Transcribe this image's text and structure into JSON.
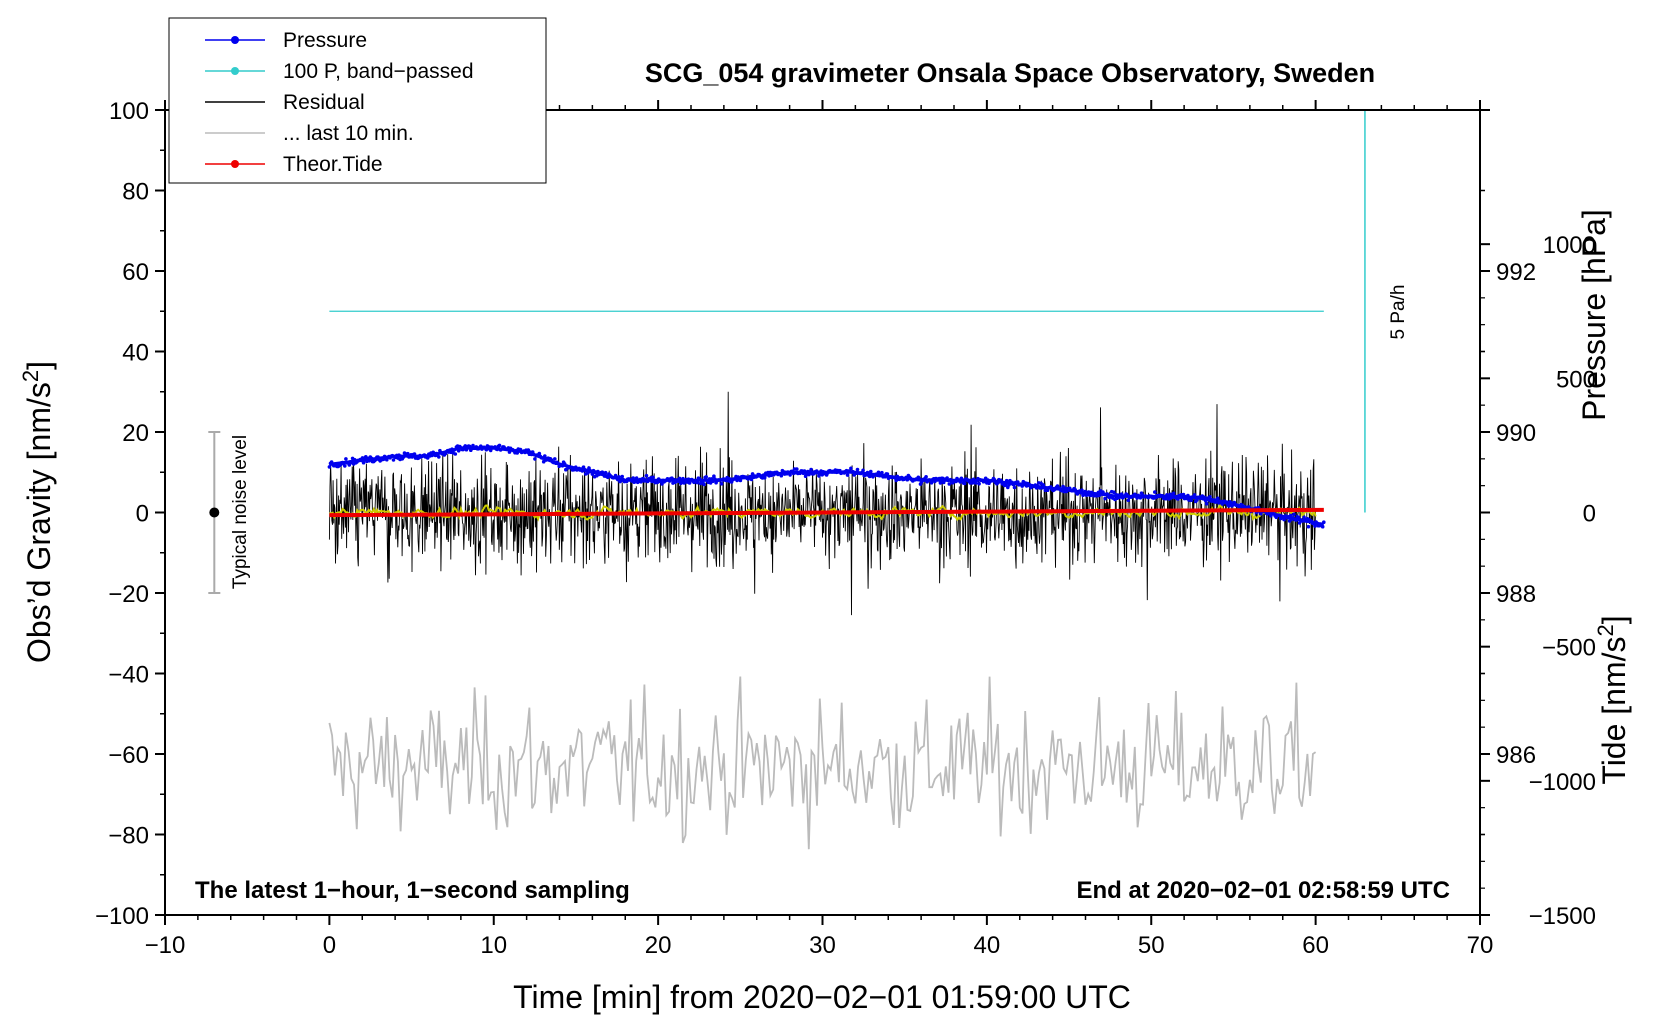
{
  "chart_data": {
    "type": "line",
    "title": "SCG_054 gravimeter Onsala Space Observatory, Sweden",
    "xlabel": "Time [min] from 2020−02−01 01:59:00 UTC",
    "ylabel_left": "Obs’d Gravity [nm/s",
    "ylabel_left_sup": "2",
    "ylabel_left_end": "]",
    "ylabel_right_pressure": "Pressure [hPa]",
    "ylabel_right_tide": "Tide [nm/s",
    "ylabel_right_tide_sup": "2",
    "ylabel_right_tide_end": "]",
    "xlim": [
      -10,
      70
    ],
    "ylim_left": [
      -100,
      100
    ],
    "pressure_lim": [
      984,
      994
    ],
    "tide_lim": [
      -1500,
      1500
    ],
    "x_ticks": [
      "−10",
      "0",
      "10",
      "20",
      "30",
      "40",
      "50",
      "60",
      "70"
    ],
    "x_tick_values": [
      -10,
      0,
      10,
      20,
      30,
      40,
      50,
      60,
      70
    ],
    "y_left_ticks": [
      "100",
      "80",
      "60",
      "40",
      "20",
      "0",
      "−20",
      "−40",
      "−60",
      "−80",
      "−100"
    ],
    "y_left_tick_values": [
      100,
      80,
      60,
      40,
      20,
      0,
      -20,
      -40,
      -60,
      -80,
      -100
    ],
    "pressure_ticks": [
      "992",
      "990",
      "988",
      "986"
    ],
    "pressure_tick_values": [
      992,
      990,
      988,
      986
    ],
    "tide_ticks": [
      "1000",
      "500",
      "0",
      "−500",
      "−1000",
      "−1500"
    ],
    "tide_tick_values": [
      1000,
      500,
      0,
      -500,
      -1000,
      -1500
    ],
    "legend": [
      {
        "label": "Pressure",
        "color": "#0000ee",
        "marker": true
      },
      {
        "label": "100 P, band−passed",
        "color": "#33cccc",
        "marker": true
      },
      {
        "label": "Residual",
        "color": "#000000",
        "marker": false
      },
      {
        "label": "... last 10 min.",
        "color": "#bbbbbb",
        "marker": false
      },
      {
        "label": "Theor.Tide",
        "color": "#ee0000",
        "marker": true
      }
    ],
    "series": [
      {
        "name": "Pressure",
        "axis": "pressure",
        "color": "#0000ee",
        "x": [
          0,
          2,
          4,
          6,
          8,
          10,
          12,
          14,
          16,
          18,
          20,
          22,
          24,
          26,
          28,
          30,
          32,
          34,
          36,
          38,
          40,
          42,
          44,
          46,
          48,
          50,
          52,
          54,
          56,
          58,
          60.5
        ],
        "y": [
          989.6,
          989.65,
          989.7,
          989.7,
          989.8,
          989.8,
          989.75,
          989.6,
          989.5,
          989.4,
          989.4,
          989.4,
          989.4,
          989.45,
          989.5,
          989.5,
          989.5,
          989.45,
          989.4,
          989.4,
          989.4,
          989.35,
          989.3,
          989.25,
          989.2,
          989.2,
          989.2,
          989.15,
          989.05,
          988.95,
          988.85
        ]
      },
      {
        "name": "100 P, band−passed",
        "axis": "left",
        "color": "#33cccc",
        "x": [
          0,
          60.5
        ],
        "y": [
          50,
          50
        ]
      },
      {
        "name": "Residual",
        "axis": "left",
        "color": "#000000",
        "x_range": [
          0,
          60
        ],
        "amplitude": 9,
        "max_abs": 30
      },
      {
        "name": "Residual (smoothed)",
        "axis": "left",
        "color": "#cccc00",
        "x_range": [
          0,
          60
        ],
        "amplitude": 1.2
      },
      {
        "name": "... last 10 min.",
        "axis": "left",
        "color": "#bbbbbb",
        "x_range": [
          0,
          60
        ],
        "center": -63,
        "amplitude": 12
      },
      {
        "name": "Theor.Tide",
        "axis": "tide",
        "color": "#ee0000",
        "x": [
          0,
          60.5
        ],
        "y": [
          -10,
          10
        ]
      }
    ],
    "noise_marker": {
      "label": "Typical noise level",
      "x": -7,
      "low": -20,
      "high": 20,
      "center": 0
    },
    "rate_bar": {
      "label": "5 Pa/h",
      "x": 63,
      "low": 0,
      "high": 100
    },
    "annotation_left": "The latest 1−hour, 1−second sampling",
    "annotation_right": "End at 2020−02−01 02:58:59 UTC"
  }
}
